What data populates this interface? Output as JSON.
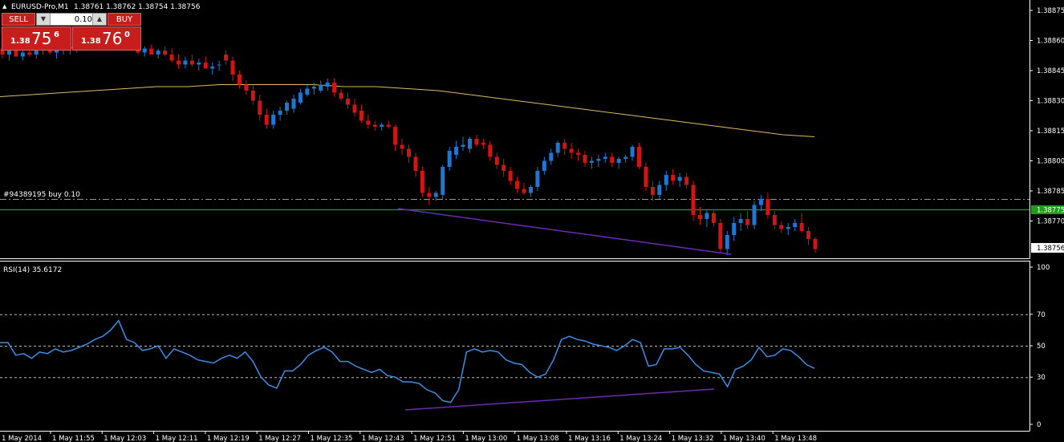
{
  "header": {
    "symbol": "EURUSD-Pro,M1",
    "ohlc": "1.38761 1.38762 1.38754 1.38756"
  },
  "trade_panel": {
    "sell_label": "SELL",
    "buy_label": "BUY",
    "lot_value": "0.10",
    "sell_price_small": "1.38",
    "sell_price_big": "75",
    "sell_price_sup": "6",
    "buy_price_small": "1.38",
    "buy_price_big": "76",
    "buy_price_sup": "0"
  },
  "order_line": {
    "label": "#94389195 buy 0.10",
    "price": 1.38776
  },
  "price_axis": {
    "ticks": [
      "1.38875",
      "1.38860",
      "1.38845",
      "1.38830",
      "1.38815",
      "1.38800",
      "1.38785",
      "1.38770"
    ],
    "tick_values": [
      1.38875,
      1.3886,
      1.38845,
      1.3883,
      1.38815,
      1.388,
      1.38785,
      1.3877
    ],
    "green_line_label": "1.38775",
    "green_line_value": 1.38775,
    "current_price_label": "1.38756",
    "current_price_value": 1.38756
  },
  "rsi": {
    "label": "RSI(14) 35.6172",
    "ticks": [
      "100",
      "70",
      "50",
      "30",
      "0"
    ],
    "tick_values": [
      100,
      70,
      50,
      30,
      0
    ]
  },
  "time_axis": {
    "labels": [
      "1 May 2014",
      "1 May 11:55",
      "1 May 12:03",
      "1 May 12:11",
      "1 May 12:19",
      "1 May 12:27",
      "1 May 12:35",
      "1 May 12:43",
      "1 May 12:51",
      "1 May 13:00",
      "1 May 13:08",
      "1 May 13:16",
      "1 May 13:24",
      "1 May 13:32",
      "1 May 13:40",
      "1 May 13:48"
    ]
  },
  "colors": {
    "bull": "#1e77d3",
    "bear": "#d21414",
    "ma": "#e0c070",
    "rsi": "#3c8ee6",
    "green_line": "#1f9d1f",
    "trendline": "#6a2bb5"
  },
  "chart_data": {
    "type": "candlestick",
    "ohlc_approx": [
      [
        1.38856,
        1.38859,
        1.38851,
        1.38853
      ],
      [
        1.38853,
        1.38857,
        1.3885,
        1.38855
      ],
      [
        1.38855,
        1.38858,
        1.38852,
        1.38852
      ],
      [
        1.38852,
        1.38856,
        1.3885,
        1.38854
      ],
      [
        1.38854,
        1.38858,
        1.38852,
        1.38853
      ],
      [
        1.38853,
        1.38856,
        1.38851,
        1.38855
      ],
      [
        1.38855,
        1.38859,
        1.38853,
        1.38857
      ],
      [
        1.38857,
        1.3886,
        1.38853,
        1.38854
      ],
      [
        1.38854,
        1.38857,
        1.38851,
        1.38855
      ],
      [
        1.38855,
        1.38858,
        1.38853,
        1.38856
      ],
      [
        1.38856,
        1.38859,
        1.38853,
        1.38857
      ],
      [
        1.38857,
        1.38859,
        1.38854,
        1.38858
      ],
      [
        1.38858,
        1.38861,
        1.38855,
        1.38859
      ],
      [
        1.38859,
        1.38862,
        1.38856,
        1.38858
      ],
      [
        1.38858,
        1.38861,
        1.38855,
        1.3886
      ],
      [
        1.3886,
        1.38862,
        1.38857,
        1.38861
      ],
      [
        1.38861,
        1.38863,
        1.38858,
        1.3886
      ],
      [
        1.3886,
        1.38862,
        1.38857,
        1.38858
      ],
      [
        1.38858,
        1.38861,
        1.38856,
        1.38859
      ],
      [
        1.38859,
        1.38861,
        1.38855,
        1.38857
      ],
      [
        1.38857,
        1.38859,
        1.38853,
        1.38854
      ],
      [
        1.38854,
        1.38857,
        1.38852,
        1.38856
      ],
      [
        1.38856,
        1.38858,
        1.38853,
        1.38853
      ],
      [
        1.38853,
        1.38856,
        1.38851,
        1.38855
      ],
      [
        1.38855,
        1.38857,
        1.38852,
        1.38853
      ],
      [
        1.38853,
        1.38856,
        1.38849,
        1.3885
      ],
      [
        1.3885,
        1.38853,
        1.38846,
        1.38848
      ],
      [
        1.38848,
        1.38852,
        1.38846,
        1.3885
      ],
      [
        1.3885,
        1.38853,
        1.38847,
        1.38848
      ],
      [
        1.38848,
        1.38851,
        1.38845,
        1.38849
      ],
      [
        1.38849,
        1.38852,
        1.38846,
        1.38846
      ],
      [
        1.38846,
        1.38849,
        1.38843,
        1.38847
      ],
      [
        1.38848,
        1.3885,
        1.38845,
        1.38848
      ],
      [
        1.38853,
        1.38855,
        1.38848,
        1.3885
      ],
      [
        1.3885,
        1.38852,
        1.3884,
        1.38843
      ],
      [
        1.38843,
        1.38845,
        1.38836,
        1.38838
      ],
      [
        1.38838,
        1.3884,
        1.38833,
        1.38835
      ],
      [
        1.38835,
        1.38838,
        1.38828,
        1.3883
      ],
      [
        1.3883,
        1.38833,
        1.3882,
        1.38823
      ],
      [
        1.38823,
        1.38826,
        1.38816,
        1.38818
      ],
      [
        1.38818,
        1.38825,
        1.38816,
        1.38823
      ],
      [
        1.38823,
        1.38827,
        1.3882,
        1.38825
      ],
      [
        1.38825,
        1.3883,
        1.38823,
        1.38829
      ],
      [
        1.38826,
        1.38833,
        1.38824,
        1.38831
      ],
      [
        1.38829,
        1.38836,
        1.38828,
        1.38834
      ],
      [
        1.38833,
        1.38838,
        1.38832,
        1.38836
      ],
      [
        1.38836,
        1.38839,
        1.38833,
        1.38837
      ],
      [
        1.38835,
        1.3884,
        1.38834,
        1.38838
      ],
      [
        1.38837,
        1.38841,
        1.38835,
        1.38839
      ],
      [
        1.38839,
        1.38841,
        1.38832,
        1.38834
      ],
      [
        1.38834,
        1.38836,
        1.3883,
        1.38831
      ],
      [
        1.38831,
        1.38834,
        1.38826,
        1.38828
      ],
      [
        1.38828,
        1.38831,
        1.38822,
        1.38824
      ],
      [
        1.38825,
        1.38828,
        1.38819,
        1.3882
      ],
      [
        1.3882,
        1.38823,
        1.38816,
        1.38818
      ],
      [
        1.38818,
        1.3882,
        1.38815,
        1.38817
      ],
      [
        1.38817,
        1.38819,
        1.38815,
        1.38818
      ],
      [
        1.38818,
        1.3882,
        1.38816,
        1.38817
      ],
      [
        1.38817,
        1.38818,
        1.38805,
        1.38808
      ],
      [
        1.38808,
        1.38811,
        1.38803,
        1.38806
      ],
      [
        1.38806,
        1.38808,
        1.38799,
        1.38802
      ],
      [
        1.38802,
        1.38804,
        1.38792,
        1.38795
      ],
      [
        1.38795,
        1.38797,
        1.38782,
        1.38784
      ],
      [
        1.38784,
        1.38787,
        1.38778,
        1.38782
      ],
      [
        1.38782,
        1.38785,
        1.3878,
        1.38784
      ],
      [
        1.38783,
        1.38798,
        1.38781,
        1.38797
      ],
      [
        1.38797,
        1.38807,
        1.38795,
        1.38805
      ],
      [
        1.38803,
        1.3881,
        1.38801,
        1.38807
      ],
      [
        1.38807,
        1.38812,
        1.38805,
        1.38808
      ],
      [
        1.38806,
        1.38812,
        1.38804,
        1.38811
      ],
      [
        1.38811,
        1.38813,
        1.38807,
        1.38808
      ],
      [
        1.38809,
        1.38811,
        1.38806,
        1.38808
      ],
      [
        1.38808,
        1.3881,
        1.388,
        1.38802
      ],
      [
        1.38802,
        1.38804,
        1.38796,
        1.38798
      ],
      [
        1.38798,
        1.38801,
        1.38792,
        1.38795
      ],
      [
        1.38795,
        1.38797,
        1.38788,
        1.3879
      ],
      [
        1.3879,
        1.38792,
        1.38784,
        1.38786
      ],
      [
        1.38786,
        1.38789,
        1.38783,
        1.38784
      ],
      [
        1.38784,
        1.38788,
        1.38782,
        1.38787
      ],
      [
        1.38787,
        1.38797,
        1.38785,
        1.38795
      ],
      [
        1.38795,
        1.38802,
        1.38793,
        1.388
      ],
      [
        1.388,
        1.38806,
        1.38798,
        1.38804
      ],
      [
        1.38804,
        1.3881,
        1.38802,
        1.38809
      ],
      [
        1.38809,
        1.38811,
        1.38803,
        1.38806
      ],
      [
        1.38806,
        1.38809,
        1.38801,
        1.38804
      ],
      [
        1.38804,
        1.38806,
        1.388,
        1.38803
      ],
      [
        1.38803,
        1.38805,
        1.38797,
        1.38799
      ],
      [
        1.38799,
        1.38802,
        1.38796,
        1.388
      ],
      [
        1.388,
        1.38803,
        1.38797,
        1.38801
      ],
      [
        1.38801,
        1.38804,
        1.38799,
        1.38802
      ],
      [
        1.38802,
        1.38804,
        1.38797,
        1.38799
      ],
      [
        1.38799,
        1.38802,
        1.38796,
        1.38801
      ],
      [
        1.38801,
        1.38803,
        1.38799,
        1.38802
      ],
      [
        1.38802,
        1.38808,
        1.388,
        1.38807
      ],
      [
        1.38807,
        1.38809,
        1.38796,
        1.38797
      ],
      [
        1.38797,
        1.38799,
        1.38785,
        1.38787
      ],
      [
        1.38787,
        1.3879,
        1.3878,
        1.38783
      ],
      [
        1.38783,
        1.3879,
        1.38781,
        1.38788
      ],
      [
        1.38788,
        1.38795,
        1.38785,
        1.38793
      ],
      [
        1.38793,
        1.38796,
        1.38788,
        1.3879
      ],
      [
        1.3879,
        1.38794,
        1.38787,
        1.38792
      ],
      [
        1.38792,
        1.38794,
        1.38786,
        1.38788
      ],
      [
        1.38788,
        1.3879,
        1.3877,
        1.38773
      ],
      [
        1.38773,
        1.38777,
        1.38768,
        1.38771
      ],
      [
        1.38771,
        1.38776,
        1.38767,
        1.38774
      ],
      [
        1.38774,
        1.38776,
        1.38767,
        1.38769
      ],
      [
        1.38769,
        1.38771,
        1.38754,
        1.38756
      ],
      [
        1.38756,
        1.38765,
        1.38753,
        1.38763
      ],
      [
        1.38763,
        1.38772,
        1.3876,
        1.38769
      ],
      [
        1.38769,
        1.38774,
        1.38765,
        1.38771
      ],
      [
        1.38771,
        1.38775,
        1.38766,
        1.38768
      ],
      [
        1.38768,
        1.3878,
        1.38766,
        1.38778
      ],
      [
        1.38778,
        1.38783,
        1.38775,
        1.38781
      ],
      [
        1.38781,
        1.38784,
        1.38771,
        1.38773
      ],
      [
        1.38773,
        1.38775,
        1.38766,
        1.38768
      ],
      [
        1.38768,
        1.3877,
        1.38764,
        1.38766
      ],
      [
        1.38766,
        1.38769,
        1.38763,
        1.38767
      ],
      [
        1.38767,
        1.38771,
        1.38765,
        1.38769
      ],
      [
        1.38769,
        1.38774,
        1.38764,
        1.38765
      ],
      [
        1.38765,
        1.38767,
        1.38758,
        1.38761
      ],
      [
        1.38761,
        1.38762,
        1.38754,
        1.38756
      ]
    ],
    "ma_approx": [
      1.38832,
      1.38833,
      1.38834,
      1.38835,
      1.38836,
      1.38837,
      1.38837,
      1.38838,
      1.38838,
      1.38838,
      1.38838,
      1.38837,
      1.38837,
      1.38836,
      1.38835,
      1.38833,
      1.38831,
      1.38829,
      1.38827,
      1.38825,
      1.38823,
      1.38821,
      1.38819,
      1.38817,
      1.38815,
      1.38813,
      1.38812
    ],
    "rsi_approx": [
      52,
      52,
      44,
      45,
      42,
      46,
      45,
      48,
      46,
      47,
      49,
      51,
      54,
      56,
      60,
      66,
      54,
      52,
      47,
      48,
      50,
      42,
      48,
      46,
      44,
      41,
      40,
      39,
      42,
      44,
      42,
      46,
      40,
      30,
      25,
      23,
      34,
      34,
      38,
      44,
      47,
      49,
      46,
      40,
      40,
      37,
      35,
      33,
      35,
      31,
      30,
      27,
      27,
      26,
      22,
      20,
      15,
      14,
      22,
      46,
      48,
      46,
      47,
      46,
      41,
      39,
      38,
      33,
      30,
      32,
      41,
      54,
      56,
      54,
      53,
      51,
      50,
      49,
      47,
      50,
      54,
      52,
      37,
      38,
      48,
      48,
      49,
      44,
      38,
      34,
      33,
      32,
      24,
      35,
      37,
      41,
      49,
      43,
      44,
      48,
      47,
      43,
      38,
      35.6
    ]
  }
}
